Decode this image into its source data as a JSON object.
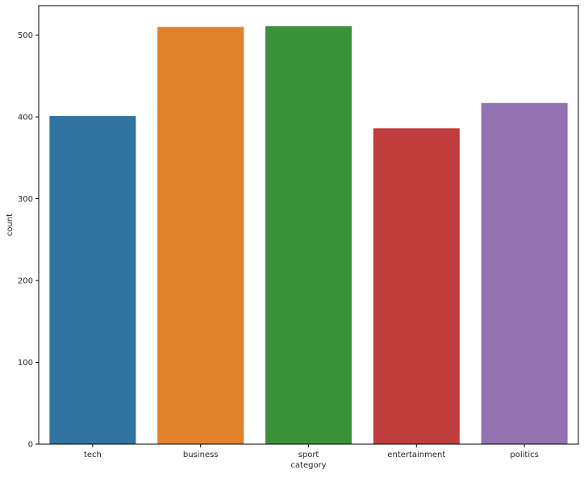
{
  "chart_data": {
    "type": "bar",
    "title": "",
    "xlabel": "category",
    "ylabel": "count",
    "categories": [
      "tech",
      "business",
      "sport",
      "entertainment",
      "politics"
    ],
    "values": [
      401,
      510,
      511,
      386,
      417
    ],
    "colors": [
      "#3274a1",
      "#e1812c",
      "#3a923a",
      "#c03d3e",
      "#9372b2"
    ],
    "ylim": [
      0,
      536
    ],
    "yticks": [
      0,
      100,
      200,
      300,
      400,
      500
    ],
    "grid": false,
    "legend": "none"
  }
}
